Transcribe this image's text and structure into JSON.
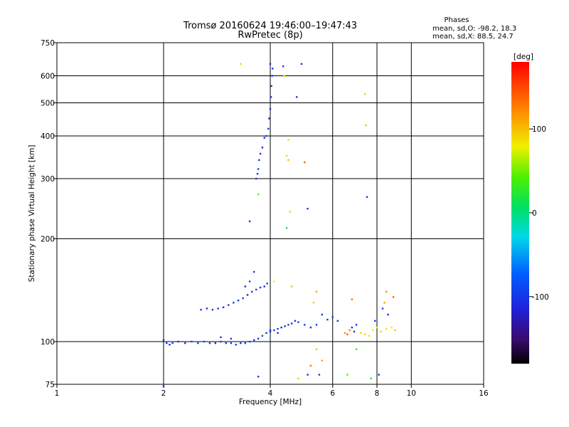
{
  "chart_data": {
    "type": "scatter",
    "title": "Tromsø 20160624 19:46:00–19:47:43",
    "subtitle": "RwPretec (8p)",
    "xlabel": "Frequency [MHz]",
    "ylabel": "Stationary phase Virtual Height [km]",
    "x_scale": "log2",
    "y_scale": "log",
    "xlim": [
      1,
      16
    ],
    "ylim": [
      75,
      750
    ],
    "x_ticks": [
      "1",
      "2",
      "4",
      "6",
      "8",
      "10",
      "16"
    ],
    "x_tick_values": [
      1,
      2,
      4,
      6,
      8,
      10,
      16
    ],
    "y_ticks": [
      "75",
      "100",
      "200",
      "300",
      "400",
      "500",
      "600",
      "750"
    ],
    "y_tick_values": [
      75,
      100,
      200,
      300,
      400,
      500,
      600,
      750
    ],
    "grid": true,
    "colorbar": {
      "label": "[deg]",
      "ticks": [
        "100",
        "0",
        "-100"
      ],
      "tick_values": [
        100,
        0,
        -100
      ],
      "range": [
        -180,
        180
      ],
      "colormap": "rainbow"
    },
    "stats": {
      "header": "Phases",
      "line1": "mean, sd,O: -98.2, 18.3",
      "line2": "mean, sd,X:  88.5, 24.7"
    },
    "points": [
      {
        "x": 2.0,
        "y": 101,
        "p": -105
      },
      {
        "x": 2.04,
        "y": 99,
        "p": -100
      },
      {
        "x": 2.08,
        "y": 98,
        "p": -110
      },
      {
        "x": 2.12,
        "y": 99,
        "p": -95
      },
      {
        "x": 2.2,
        "y": 100,
        "p": -100
      },
      {
        "x": 2.3,
        "y": 99,
        "p": -105
      },
      {
        "x": 2.4,
        "y": 100,
        "p": -90
      },
      {
        "x": 2.5,
        "y": 99,
        "p": -100
      },
      {
        "x": 2.6,
        "y": 100,
        "p": -85
      },
      {
        "x": 2.7,
        "y": 99,
        "p": -100
      },
      {
        "x": 2.8,
        "y": 99,
        "p": -110
      },
      {
        "x": 2.9,
        "y": 100,
        "p": -95
      },
      {
        "x": 3.0,
        "y": 99,
        "p": -100
      },
      {
        "x": 3.1,
        "y": 99,
        "p": -105
      },
      {
        "x": 3.2,
        "y": 98,
        "p": -100
      },
      {
        "x": 3.3,
        "y": 99,
        "p": -110
      },
      {
        "x": 3.4,
        "y": 99,
        "p": -95
      },
      {
        "x": 3.5,
        "y": 100,
        "p": -100
      },
      {
        "x": 3.6,
        "y": 101,
        "p": -105
      },
      {
        "x": 3.7,
        "y": 102,
        "p": -100
      },
      {
        "x": 3.8,
        "y": 104,
        "p": -90
      },
      {
        "x": 3.9,
        "y": 106,
        "p": -100
      },
      {
        "x": 4.0,
        "y": 108,
        "p": -105
      },
      {
        "x": 4.1,
        "y": 108,
        "p": -95
      },
      {
        "x": 4.2,
        "y": 109,
        "p": -100
      },
      {
        "x": 4.3,
        "y": 110,
        "p": -110
      },
      {
        "x": 4.4,
        "y": 111,
        "p": -100
      },
      {
        "x": 4.5,
        "y": 112,
        "p": -95
      },
      {
        "x": 4.6,
        "y": 113,
        "p": -105
      },
      {
        "x": 4.7,
        "y": 115,
        "p": -100
      },
      {
        "x": 4.8,
        "y": 114,
        "p": -90
      },
      {
        "x": 5.0,
        "y": 112,
        "p": -100
      },
      {
        "x": 5.2,
        "y": 110,
        "p": -105
      },
      {
        "x": 5.4,
        "y": 112,
        "p": -100
      },
      {
        "x": 2.9,
        "y": 103,
        "p": -100
      },
      {
        "x": 3.1,
        "y": 102,
        "p": -95
      },
      {
        "x": 4.0,
        "y": 107,
        "p": -100
      },
      {
        "x": 4.2,
        "y": 106,
        "p": -110
      },
      {
        "x": 2.55,
        "y": 124,
        "p": -100
      },
      {
        "x": 2.65,
        "y": 125,
        "p": -105
      },
      {
        "x": 2.75,
        "y": 124,
        "p": -95
      },
      {
        "x": 2.85,
        "y": 125,
        "p": -100
      },
      {
        "x": 2.95,
        "y": 126,
        "p": -110
      },
      {
        "x": 3.05,
        "y": 128,
        "p": -100
      },
      {
        "x": 3.15,
        "y": 130,
        "p": -95
      },
      {
        "x": 3.25,
        "y": 132,
        "p": -105
      },
      {
        "x": 3.35,
        "y": 134,
        "p": -100
      },
      {
        "x": 3.45,
        "y": 137,
        "p": -110
      },
      {
        "x": 3.55,
        "y": 140,
        "p": -100
      },
      {
        "x": 3.65,
        "y": 142,
        "p": -95
      },
      {
        "x": 3.75,
        "y": 144,
        "p": -100
      },
      {
        "x": 3.85,
        "y": 145,
        "p": -105
      },
      {
        "x": 3.92,
        "y": 148,
        "p": -100
      },
      {
        "x": 3.5,
        "y": 150,
        "p": -90
      },
      {
        "x": 3.6,
        "y": 160,
        "p": -100
      },
      {
        "x": 3.4,
        "y": 145,
        "p": -110
      },
      {
        "x": 3.65,
        "y": 300,
        "p": -100
      },
      {
        "x": 3.68,
        "y": 310,
        "p": -95
      },
      {
        "x": 3.7,
        "y": 320,
        "p": -100
      },
      {
        "x": 3.72,
        "y": 340,
        "p": -105
      },
      {
        "x": 3.75,
        "y": 355,
        "p": -100
      },
      {
        "x": 3.8,
        "y": 370,
        "p": -110
      },
      {
        "x": 3.85,
        "y": 395,
        "p": -100
      },
      {
        "x": 3.9,
        "y": 400,
        "p": -95
      },
      {
        "x": 3.95,
        "y": 420,
        "p": -100
      },
      {
        "x": 3.97,
        "y": 450,
        "p": -105
      },
      {
        "x": 4.0,
        "y": 480,
        "p": -100
      },
      {
        "x": 4.02,
        "y": 520,
        "p": -110
      },
      {
        "x": 4.03,
        "y": 560,
        "p": -100
      },
      {
        "x": 4.05,
        "y": 600,
        "p": -95
      },
      {
        "x": 4.06,
        "y": 630,
        "p": -100
      },
      {
        "x": 4.0,
        "y": 650,
        "p": -105
      },
      {
        "x": 4.35,
        "y": 640,
        "p": -100
      },
      {
        "x": 4.38,
        "y": 600,
        "p": 80
      },
      {
        "x": 4.9,
        "y": 650,
        "p": -100
      },
      {
        "x": 3.3,
        "y": 650,
        "p": 90
      },
      {
        "x": 4.5,
        "y": 340,
        "p": 100
      },
      {
        "x": 5.0,
        "y": 335,
        "p": 140
      },
      {
        "x": 4.45,
        "y": 350,
        "p": 85
      },
      {
        "x": 5.1,
        "y": 245,
        "p": -100
      },
      {
        "x": 4.55,
        "y": 240,
        "p": 90
      },
      {
        "x": 4.45,
        "y": 215,
        "p": 20
      },
      {
        "x": 3.7,
        "y": 270,
        "p": 50
      },
      {
        "x": 3.5,
        "y": 225,
        "p": -100
      },
      {
        "x": 4.75,
        "y": 520,
        "p": -100
      },
      {
        "x": 4.5,
        "y": 390,
        "p": 70
      },
      {
        "x": 7.5,
        "y": 265,
        "p": -100
      },
      {
        "x": 7.4,
        "y": 530,
        "p": 90
      },
      {
        "x": 7.45,
        "y": 430,
        "p": 100
      },
      {
        "x": 6.5,
        "y": 106,
        "p": 120
      },
      {
        "x": 6.6,
        "y": 105,
        "p": 140
      },
      {
        "x": 6.7,
        "y": 108,
        "p": 130
      },
      {
        "x": 6.8,
        "y": 110,
        "p": -100
      },
      {
        "x": 6.9,
        "y": 107,
        "p": -95
      },
      {
        "x": 7.0,
        "y": 112,
        "p": -100
      },
      {
        "x": 7.2,
        "y": 106,
        "p": 90
      },
      {
        "x": 7.4,
        "y": 105,
        "p": 95
      },
      {
        "x": 7.6,
        "y": 104,
        "p": 85
      },
      {
        "x": 7.8,
        "y": 108,
        "p": 80
      },
      {
        "x": 8.0,
        "y": 110,
        "p": 75
      },
      {
        "x": 8.2,
        "y": 107,
        "p": 90
      },
      {
        "x": 8.5,
        "y": 109,
        "p": 85
      },
      {
        "x": 8.8,
        "y": 110,
        "p": 80
      },
      {
        "x": 9.0,
        "y": 108,
        "p": 95
      },
      {
        "x": 8.6,
        "y": 120,
        "p": -100
      },
      {
        "x": 8.3,
        "y": 125,
        "p": -95
      },
      {
        "x": 7.9,
        "y": 115,
        "p": -100
      },
      {
        "x": 8.9,
        "y": 135,
        "p": 140
      },
      {
        "x": 8.4,
        "y": 130,
        "p": 110
      },
      {
        "x": 6.2,
        "y": 115,
        "p": -100
      },
      {
        "x": 6.0,
        "y": 118,
        "p": -100
      },
      {
        "x": 5.6,
        "y": 120,
        "p": -100
      },
      {
        "x": 5.8,
        "y": 116,
        "p": -105
      },
      {
        "x": 5.3,
        "y": 130,
        "p": 90
      },
      {
        "x": 5.4,
        "y": 95,
        "p": 100
      },
      {
        "x": 5.6,
        "y": 88,
        "p": 110
      },
      {
        "x": 5.5,
        "y": 80,
        "p": -100
      },
      {
        "x": 6.6,
        "y": 80,
        "p": 40
      },
      {
        "x": 7.7,
        "y": 78,
        "p": 20
      },
      {
        "x": 8.1,
        "y": 80,
        "p": -100
      },
      {
        "x": 5.2,
        "y": 85,
        "p": 130
      },
      {
        "x": 5.1,
        "y": 80,
        "p": -100
      },
      {
        "x": 4.8,
        "y": 78,
        "p": 90
      },
      {
        "x": 3.7,
        "y": 79,
        "p": -100
      },
      {
        "x": 2.0,
        "y": 74,
        "p": -100
      },
      {
        "x": 7.0,
        "y": 95,
        "p": 30
      },
      {
        "x": 4.6,
        "y": 145,
        "p": 60
      },
      {
        "x": 4.1,
        "y": 150,
        "p": 80
      },
      {
        "x": 5.4,
        "y": 140,
        "p": 110
      },
      {
        "x": 6.8,
        "y": 133,
        "p": 130
      },
      {
        "x": 8.5,
        "y": 140,
        "p": 120
      }
    ]
  }
}
